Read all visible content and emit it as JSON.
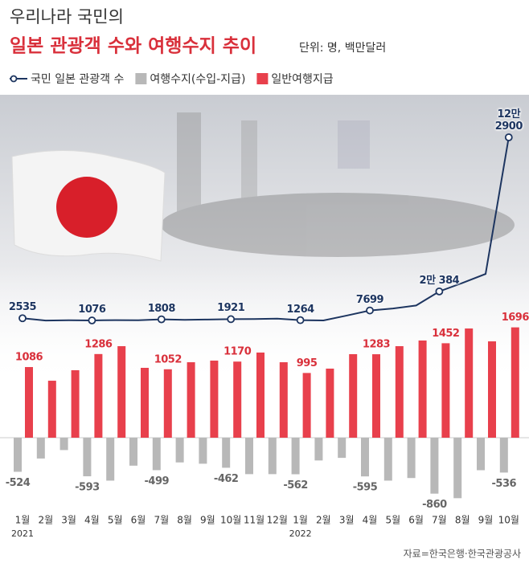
{
  "chart_data": {
    "type": "bar_line",
    "title_line1": "우리나라 국민의",
    "title_line2": "일본 관광객 수와 여행수지 추이",
    "unit": "단위: 명, 백만달러",
    "source": "자료=한국은행·한국관광공사",
    "categories": [
      "1월",
      "2월",
      "3월",
      "4월",
      "5월",
      "6월",
      "7월",
      "8월",
      "9월",
      "10월",
      "11월",
      "12월",
      "1월",
      "2월",
      "3월",
      "4월",
      "5월",
      "6월",
      "7월",
      "8월",
      "9월",
      "10월"
    ],
    "year_labels": [
      "2021",
      null,
      null,
      null,
      null,
      null,
      null,
      null,
      null,
      null,
      null,
      null,
      "2022",
      null,
      null,
      null,
      null,
      null,
      null,
      null,
      null,
      null
    ],
    "series": [
      {
        "name": "국민 일본 관광객 수",
        "type": "line",
        "color": "#1d3560",
        "values": [
          2535,
          1000,
          1200,
          1076,
          1300,
          1200,
          1808,
          1500,
          1700,
          1921,
          2000,
          2300,
          1264,
          1100,
          4300,
          7699,
          9000,
          11000,
          20384,
          26000,
          32000,
          122900
        ],
        "value_labels": [
          "2535",
          null,
          null,
          "1076",
          null,
          null,
          "1808",
          null,
          null,
          "1921",
          null,
          null,
          "1264",
          null,
          null,
          "7699",
          null,
          null,
          "2만 384",
          null,
          null,
          "12만\n2900"
        ]
      },
      {
        "name": "여행수지(수입-지급)",
        "type": "bar",
        "color": "#b8b8b8",
        "values": [
          -524,
          -320,
          -190,
          -593,
          -660,
          -430,
          -499,
          -380,
          -400,
          -462,
          -560,
          -560,
          -562,
          -350,
          -310,
          -595,
          -660,
          -620,
          -860,
          -930,
          -500,
          -536
        ],
        "value_labels": [
          "-524",
          null,
          null,
          "-593",
          null,
          null,
          "-499",
          null,
          null,
          "-462",
          null,
          null,
          "-562",
          null,
          null,
          "-595",
          null,
          null,
          "-860",
          null,
          null,
          "-536"
        ]
      },
      {
        "name": "일반여행지급",
        "type": "bar",
        "color": "#e8404c",
        "values": [
          1086,
          876,
          1037,
          1286,
          1407,
          1074,
          1052,
          1160,
          1185,
          1170,
          1309,
          1160,
          995,
          1062,
          1284,
          1283,
          1407,
          1494,
          1452,
          1679,
          1481,
          1696
        ],
        "value_labels": [
          "1086",
          null,
          null,
          "1286",
          null,
          null,
          "1052",
          null,
          null,
          "1170",
          null,
          null,
          "995",
          null,
          null,
          "1283",
          null,
          null,
          "1452",
          null,
          null,
          "1696"
        ]
      }
    ]
  }
}
